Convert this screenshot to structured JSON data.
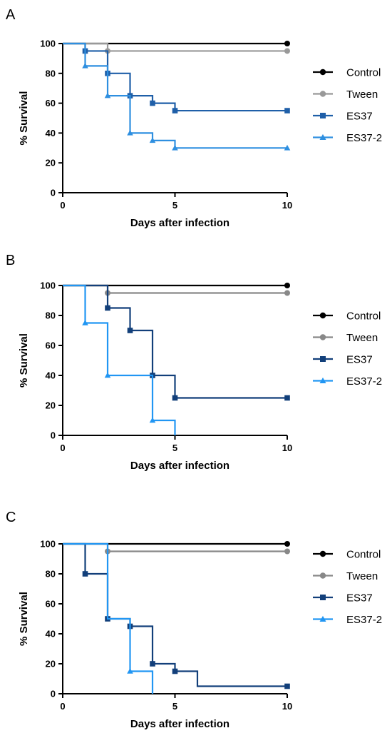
{
  "chart_data": [
    {
      "type": "line",
      "panel_label": "A",
      "xlabel": "Days after infection",
      "ylabel": "% Survival",
      "xlim": [
        0,
        10
      ],
      "ylim": [
        0,
        100
      ],
      "xticks": [
        0,
        5,
        10
      ],
      "yticks": [
        0,
        20,
        40,
        60,
        80,
        100
      ],
      "grid": false,
      "legend_position": "right",
      "series": [
        {
          "name": "Control",
          "color": "#000000",
          "marker": "circle",
          "steps": [
            [
              0,
              100
            ],
            [
              10,
              100
            ]
          ],
          "markers": [
            [
              10,
              100
            ]
          ]
        },
        {
          "name": "Tween",
          "color": "#999999",
          "marker": "circle",
          "steps": [
            [
              0,
              100
            ],
            [
              2,
              95
            ],
            [
              10,
              95
            ]
          ],
          "markers": [
            [
              2,
              95
            ],
            [
              10,
              95
            ]
          ]
        },
        {
          "name": "ES37",
          "color": "#1f5fa8",
          "marker": "square",
          "steps": [
            [
              0,
              100
            ],
            [
              1,
              95
            ],
            [
              2,
              80
            ],
            [
              3,
              65
            ],
            [
              4,
              60
            ],
            [
              5,
              55
            ],
            [
              10,
              55
            ]
          ],
          "markers": [
            [
              1,
              95
            ],
            [
              2,
              80
            ],
            [
              3,
              65
            ],
            [
              4,
              60
            ],
            [
              5,
              55
            ],
            [
              10,
              55
            ]
          ]
        },
        {
          "name": "ES37-2",
          "color": "#2e8fe0",
          "marker": "triangle",
          "steps": [
            [
              0,
              100
            ],
            [
              1,
              85
            ],
            [
              2,
              65
            ],
            [
              3,
              40
            ],
            [
              4,
              35
            ],
            [
              5,
              30
            ],
            [
              10,
              30
            ]
          ],
          "markers": [
            [
              1,
              85
            ],
            [
              2,
              65
            ],
            [
              3,
              40
            ],
            [
              4,
              35
            ],
            [
              5,
              30
            ],
            [
              10,
              30
            ]
          ]
        }
      ]
    },
    {
      "type": "line",
      "panel_label": "B",
      "xlabel": "Days after infection",
      "ylabel": "% Survival",
      "xlim": [
        0,
        10
      ],
      "ylim": [
        0,
        100
      ],
      "xticks": [
        0,
        5,
        10
      ],
      "yticks": [
        0,
        20,
        40,
        60,
        80,
        100
      ],
      "grid": false,
      "legend_position": "right",
      "series": [
        {
          "name": "Control",
          "color": "#000000",
          "marker": "circle",
          "steps": [
            [
              0,
              100
            ],
            [
              10,
              100
            ]
          ],
          "markers": [
            [
              10,
              100
            ]
          ]
        },
        {
          "name": "Tween",
          "color": "#888888",
          "marker": "circle",
          "steps": [
            [
              0,
              100
            ],
            [
              2,
              95
            ],
            [
              10,
              95
            ]
          ],
          "markers": [
            [
              2,
              95
            ],
            [
              10,
              95
            ]
          ]
        },
        {
          "name": "ES37",
          "color": "#123f7a",
          "marker": "square",
          "steps": [
            [
              0,
              100
            ],
            [
              2,
              85
            ],
            [
              3,
              70
            ],
            [
              4,
              40
            ],
            [
              5,
              25
            ],
            [
              10,
              25
            ]
          ],
          "markers": [
            [
              2,
              85
            ],
            [
              3,
              70
            ],
            [
              4,
              40
            ],
            [
              5,
              25
            ],
            [
              10,
              25
            ]
          ]
        },
        {
          "name": "ES37-2",
          "color": "#2196f3",
          "marker": "triangle",
          "steps": [
            [
              0,
              100
            ],
            [
              1,
              75
            ],
            [
              2,
              40
            ],
            [
              4,
              10
            ],
            [
              5,
              0
            ]
          ],
          "markers": [
            [
              1,
              75
            ],
            [
              2,
              40
            ],
            [
              4,
              10
            ]
          ]
        }
      ]
    },
    {
      "type": "line",
      "panel_label": "C",
      "xlabel": "Days after infection",
      "ylabel": "% Survival",
      "xlim": [
        0,
        10
      ],
      "ylim": [
        0,
        100
      ],
      "xticks": [
        0,
        5,
        10
      ],
      "yticks": [
        0,
        20,
        40,
        60,
        80,
        100
      ],
      "grid": false,
      "legend_position": "right",
      "series": [
        {
          "name": "Control",
          "color": "#000000",
          "marker": "circle",
          "steps": [
            [
              0,
              100
            ],
            [
              10,
              100
            ]
          ],
          "markers": [
            [
              10,
              100
            ]
          ]
        },
        {
          "name": "Tween",
          "color": "#888888",
          "marker": "circle",
          "steps": [
            [
              0,
              100
            ],
            [
              2,
              95
            ],
            [
              10,
              95
            ]
          ],
          "markers": [
            [
              2,
              95
            ],
            [
              10,
              95
            ]
          ]
        },
        {
          "name": "ES37",
          "color": "#123f7a",
          "marker": "square",
          "steps": [
            [
              0,
              100
            ],
            [
              1,
              80
            ],
            [
              2,
              50
            ],
            [
              3,
              45
            ],
            [
              4,
              20
            ],
            [
              5,
              15
            ],
            [
              6,
              5
            ],
            [
              10,
              5
            ]
          ],
          "markers": [
            [
              1,
              80
            ],
            [
              2,
              50
            ],
            [
              3,
              45
            ],
            [
              4,
              20
            ],
            [
              5,
              15
            ],
            [
              10,
              5
            ]
          ]
        },
        {
          "name": "ES37-2",
          "color": "#2196f3",
          "marker": "triangle",
          "steps": [
            [
              0,
              100
            ],
            [
              2,
              50
            ],
            [
              3,
              15
            ],
            [
              4,
              0
            ]
          ],
          "markers": [
            [
              3,
              15
            ]
          ]
        }
      ]
    }
  ]
}
